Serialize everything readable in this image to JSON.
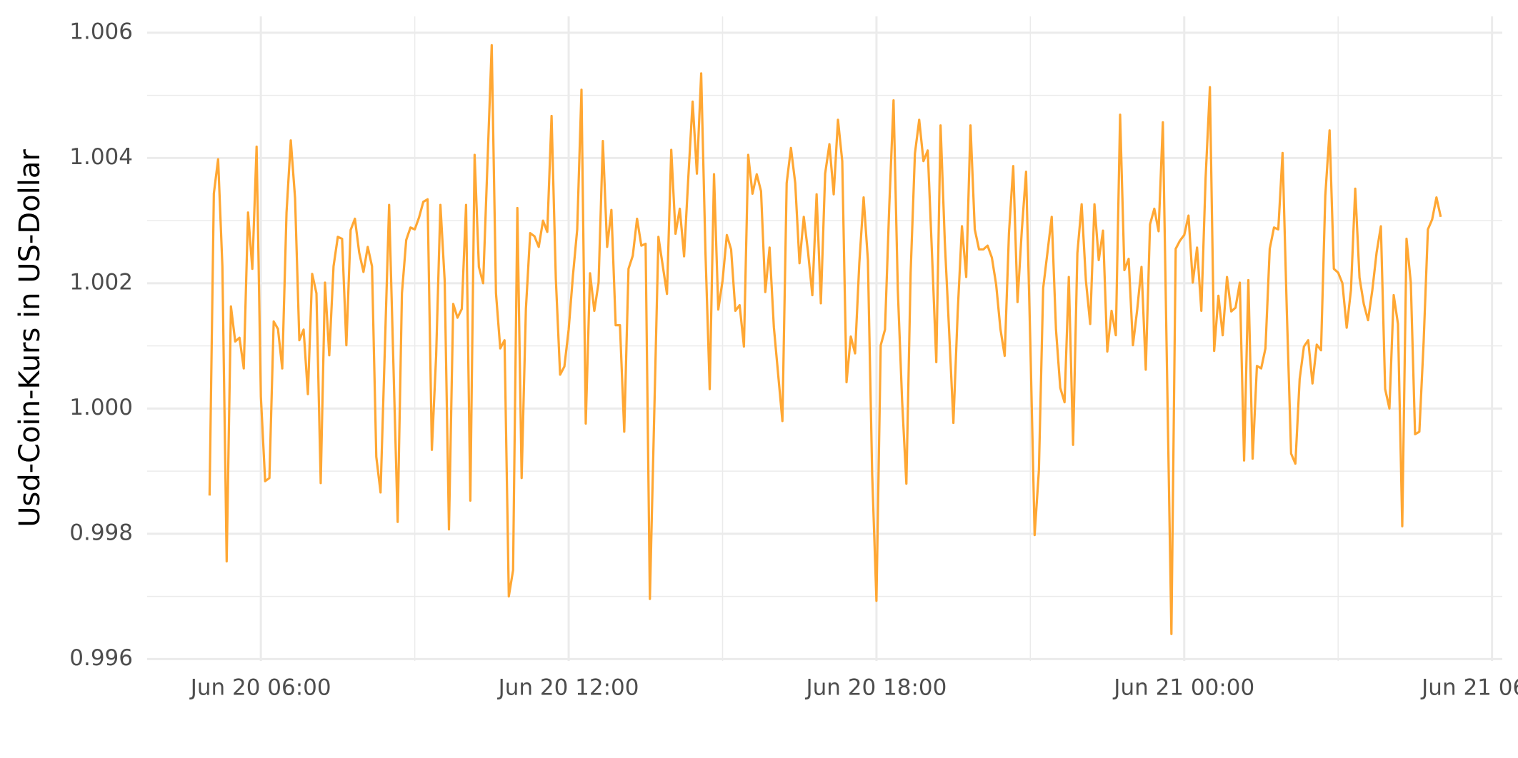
{
  "chart_data": {
    "type": "line",
    "y_label": "Usd-Coin-Kurs in US-Dollar",
    "color": "#ffa733",
    "grid": true,
    "xlim": [
      "Jun 20 03:47",
      "Jun 21 06:12"
    ],
    "xticks": [
      "Jun 20 06:00",
      "Jun 20 12:00",
      "Jun 20 18:00",
      "Jun 21 00:00",
      "Jun 21 06:00"
    ],
    "xminor": [
      "Jun 20 09:00",
      "Jun 20 15:00",
      "Jun 20 21:00",
      "Jun 21 03:00"
    ],
    "ylim": [
      0.99597,
      1.00626
    ],
    "yticks": [
      0.996,
      0.998,
      {
        "value": 1,
        "label": "1.000"
      },
      1.002,
      1.004,
      1.006
    ],
    "yminor": [
      0.997,
      0.999,
      1.001,
      1.003,
      1.005
    ],
    "x": [
      "Jun 20 05:00",
      "Jun 20 05:05",
      "Jun 20 05:10",
      "Jun 20 05:15",
      "Jun 20 05:20",
      "Jun 20 05:25",
      "Jun 20 05:30",
      "Jun 20 05:35",
      "Jun 20 05:40",
      "Jun 20 05:45",
      "Jun 20 05:50",
      "Jun 20 05:55",
      "Jun 20 06:00",
      "Jun 20 06:05",
      "Jun 20 06:10",
      "Jun 20 06:15",
      "Jun 20 06:20",
      "Jun 20 06:25",
      "Jun 20 06:30",
      "Jun 20 06:35",
      "Jun 20 06:40",
      "Jun 20 06:45",
      "Jun 20 06:50",
      "Jun 20 06:55",
      "Jun 20 07:00",
      "Jun 20 07:05",
      "Jun 20 07:10",
      "Jun 20 07:15",
      "Jun 20 07:20",
      "Jun 20 07:25",
      "Jun 20 07:30",
      "Jun 20 07:35",
      "Jun 20 07:40",
      "Jun 20 07:45",
      "Jun 20 07:50",
      "Jun 20 07:55",
      "Jun 20 08:00",
      "Jun 20 08:05",
      "Jun 20 08:10",
      "Jun 20 08:15",
      "Jun 20 08:20",
      "Jun 20 08:30",
      "Jun 20 08:40",
      "Jun 20 08:45",
      "Jun 20 08:50",
      "Jun 20 08:55",
      "Jun 20 09:00",
      "Jun 20 09:05",
      "Jun 20 09:10",
      "Jun 20 09:15",
      "Jun 20 09:20",
      "Jun 20 09:25",
      "Jun 20 09:30",
      "Jun 20 09:35",
      "Jun 20 09:40",
      "Jun 20 09:45",
      "Jun 20 09:50",
      "Jun 20 09:55",
      "Jun 20 10:00",
      "Jun 20 10:05",
      "Jun 20 10:10",
      "Jun 20 10:15",
      "Jun 20 10:20",
      "Jun 20 10:30",
      "Jun 20 10:35",
      "Jun 20 10:40",
      "Jun 20 10:45",
      "Jun 20 10:50",
      "Jun 20 10:55",
      "Jun 20 11:00",
      "Jun 20 11:05",
      "Jun 20 11:10",
      "Jun 20 11:15",
      "Jun 20 11:20",
      "Jun 20 11:25",
      "Jun 20 11:30",
      "Jun 20 11:35",
      "Jun 20 11:40",
      "Jun 20 11:45",
      "Jun 20 11:50",
      "Jun 20 11:55",
      "Jun 20 12:00",
      "Jun 20 12:05",
      "Jun 20 12:10",
      "Jun 20 12:15",
      "Jun 20 12:20",
      "Jun 20 12:25",
      "Jun 20 12:30",
      "Jun 20 12:35",
      "Jun 20 12:40",
      "Jun 20 12:45",
      "Jun 20 12:50",
      "Jun 20 12:55",
      "Jun 20 13:00",
      "Jun 20 13:05",
      "Jun 20 13:10",
      "Jun 20 13:15",
      "Jun 20 13:20",
      "Jun 20 13:25",
      "Jun 20 13:30",
      "Jun 20 13:35",
      "Jun 20 13:45",
      "Jun 20 13:55",
      "Jun 20 14:00",
      "Jun 20 14:05",
      "Jun 20 14:10",
      "Jun 20 14:15",
      "Jun 20 14:20",
      "Jun 20 14:25",
      "Jun 20 14:30",
      "Jun 20 14:35",
      "Jun 20 14:40",
      "Jun 20 14:45",
      "Jun 20 14:50",
      "Jun 20 14:55",
      "Jun 20 15:00",
      "Jun 20 15:05",
      "Jun 20 15:10",
      "Jun 20 15:15",
      "Jun 20 15:20",
      "Jun 20 15:25",
      "Jun 20 15:30",
      "Jun 20 15:35",
      "Jun 20 15:40",
      "Jun 20 15:45",
      "Jun 20 15:50",
      "Jun 20 15:55",
      "Jun 20 16:00",
      "Jun 20 16:10",
      "Jun 20 16:15",
      "Jun 20 16:20",
      "Jun 20 16:25",
      "Jun 20 16:30",
      "Jun 20 16:35",
      "Jun 20 16:40",
      "Jun 20 16:45",
      "Jun 20 16:50",
      "Jun 20 16:55",
      "Jun 20 17:00",
      "Jun 20 17:05",
      "Jun 20 17:10",
      "Jun 20 17:15",
      "Jun 20 17:20",
      "Jun 20 17:25",
      "Jun 20 17:30",
      "Jun 20 17:35",
      "Jun 20 17:40",
      "Jun 20 17:45",
      "Jun 20 17:50",
      "Jun 20 17:55",
      "Jun 20 18:00",
      "Jun 20 18:05",
      "Jun 20 18:10",
      "Jun 20 18:15",
      "Jun 20 18:20",
      "Jun 20 18:25",
      "Jun 20 18:30",
      "Jun 20 18:35",
      "Jun 20 18:40",
      "Jun 20 18:45",
      "Jun 20 18:50",
      "Jun 20 18:55",
      "Jun 20 19:00",
      "Jun 20 19:05",
      "Jun 20 19:10",
      "Jun 20 19:15",
      "Jun 20 19:20",
      "Jun 20 19:25",
      "Jun 20 19:30",
      "Jun 20 19:35",
      "Jun 20 19:40",
      "Jun 20 19:45",
      "Jun 20 19:50",
      "Jun 20 19:55",
      "Jun 20 20:00",
      "Jun 20 20:05",
      "Jun 20 20:10",
      "Jun 20 20:15",
      "Jun 20 20:20",
      "Jun 20 20:25",
      "Jun 20 20:30",
      "Jun 20 20:35",
      "Jun 20 20:40",
      "Jun 20 20:45",
      "Jun 20 20:50",
      "Jun 20 20:55",
      "Jun 20 21:00",
      "Jun 20 21:05",
      "Jun 20 21:10",
      "Jun 20 21:15",
      "Jun 20 21:20",
      "Jun 20 21:25",
      "Jun 20 21:30",
      "Jun 20 21:35",
      "Jun 20 21:40",
      "Jun 20 21:45",
      "Jun 20 21:50",
      "Jun 20 21:55",
      "Jun 20 22:00",
      "Jun 20 22:05",
      "Jun 20 22:10",
      "Jun 20 22:15",
      "Jun 20 22:20",
      "Jun 20 22:25",
      "Jun 20 22:30",
      "Jun 20 22:35",
      "Jun 20 22:40",
      "Jun 20 22:45",
      "Jun 20 22:50",
      "Jun 20 22:55",
      "Jun 20 23:00",
      "Jun 20 23:05",
      "Jun 20 23:10",
      "Jun 20 23:15",
      "Jun 20 23:20",
      "Jun 20 23:25",
      "Jun 20 23:30",
      "Jun 20 23:35",
      "Jun 20 23:45",
      "Jun 20 23:50",
      "Jun 20 23:55",
      "Jun 21 00:00",
      "Jun 21 00:05",
      "Jun 21 00:10",
      "Jun 21 00:15",
      "Jun 21 00:20",
      "Jun 21 00:25",
      "Jun 21 00:30",
      "Jun 21 00:35",
      "Jun 21 00:40",
      "Jun 21 00:45",
      "Jun 21 00:50",
      "Jun 21 00:55",
      "Jun 21 01:00",
      "Jun 21 01:05",
      "Jun 21 01:10",
      "Jun 21 01:15",
      "Jun 21 01:20",
      "Jun 21 01:25",
      "Jun 21 01:30",
      "Jun 21 01:35",
      "Jun 21 01:40",
      "Jun 21 01:45",
      "Jun 21 01:50",
      "Jun 21 01:55",
      "Jun 21 02:00",
      "Jun 21 02:05",
      "Jun 21 02:10",
      "Jun 21 02:15",
      "Jun 21 02:20",
      "Jun 21 02:25",
      "Jun 21 02:30",
      "Jun 21 02:35",
      "Jun 21 02:40",
      "Jun 21 02:45",
      "Jun 21 02:50",
      "Jun 21 02:55",
      "Jun 21 03:00",
      "Jun 21 03:05",
      "Jun 21 03:10",
      "Jun 21 03:15",
      "Jun 21 03:20",
      "Jun 21 03:25",
      "Jun 21 03:30",
      "Jun 21 03:35",
      "Jun 21 03:40",
      "Jun 21 03:45",
      "Jun 21 03:50",
      "Jun 21 03:55",
      "Jun 21 04:00",
      "Jun 21 04:05",
      "Jun 21 04:10",
      "Jun 21 04:15",
      "Jun 21 04:20",
      "Jun 21 04:25",
      "Jun 21 04:30",
      "Jun 21 04:35",
      "Jun 21 04:40",
      "Jun 21 04:45",
      "Jun 21 04:50",
      "Jun 21 04:55",
      "Jun 21 05:00"
    ],
    "values": [
      0.99861,
      1.00343,
      1.00398,
      1.00227,
      0.99756,
      1.00163,
      1.00107,
      1.00113,
      1.00064,
      1.00313,
      1.00223,
      1.00418,
      1.00019,
      0.99884,
      0.99889,
      1.00139,
      1.00127,
      1.00064,
      1.00313,
      1.00428,
      1.00336,
      1.00109,
      1.00126,
      1.00023,
      1.00215,
      1.00184,
      0.99881,
      1.00201,
      1.00085,
      1.00227,
      1.00274,
      1.00271,
      1.00101,
      1.00285,
      1.00303,
      1.00249,
      1.00218,
      1.00258,
      1.00227,
      0.99923,
      0.99866,
      1.00325,
      0.99819,
      1.00184,
      1.00269,
      1.00289,
      1.00286,
      1.00305,
      1.0033,
      1.00334,
      0.99934,
      1.00084,
      1.00325,
      1.00204,
      0.99807,
      1.00167,
      1.00145,
      1.00159,
      1.00325,
      0.99853,
      1.00405,
      1.00226,
      1.002,
      1.0058,
      1.00184,
      1.00096,
      1.00109,
      0.997,
      0.99742,
      1.0032,
      0.99889,
      1.00159,
      1.0028,
      1.00275,
      1.00258,
      1.003,
      1.00282,
      1.00467,
      1.00207,
      1.00054,
      1.00067,
      1.00126,
      1.00212,
      1.00286,
      1.00509,
      0.99976,
      1.00216,
      1.00156,
      1.00201,
      1.00427,
      1.00258,
      1.00317,
      1.00133,
      1.00133,
      0.99963,
      1.00223,
      1.00244,
      1.00303,
      1.0026,
      1.00263,
      0.99696,
      1.00274,
      1.00183,
      1.00413,
      1.00279,
      1.00319,
      1.00243,
      1.0037,
      1.0049,
      1.00375,
      1.00535,
      1.0025,
      1.00031,
      1.00374,
      1.00158,
      1.00204,
      1.00277,
      1.00254,
      1.00156,
      1.00165,
      1.00099,
      1.00405,
      1.00343,
      1.00374,
      1.00347,
      1.00186,
      1.00257,
      1.0013,
      0.9998,
      1.0036,
      1.00416,
      1.0036,
      1.00232,
      1.00306,
      1.0025,
      1.00181,
      1.00342,
      1.00168,
      1.00375,
      1.00422,
      1.00342,
      1.00461,
      1.00395,
      1.00042,
      1.00115,
      1.00088,
      1.00233,
      1.00337,
      1.00237,
      0.99895,
      0.99693,
      1.00101,
      1.00126,
      1.00323,
      1.00492,
      1.00189,
      1.00013,
      0.9988,
      1.00217,
      1.00407,
      1.00461,
      1.00395,
      1.00412,
      1.00246,
      1.00074,
      1.00452,
      1.00265,
      1.00124,
      0.99977,
      1.00153,
      1.00291,
      1.0021,
      1.00452,
      1.00286,
      1.00254,
      1.00254,
      1.0026,
      1.00241,
      1.00198,
      1.00127,
      1.00084,
      1.0028,
      1.00387,
      1.0017,
      1.00284,
      1.00378,
      1.00104,
      0.99798,
      0.99901,
      1.00192,
      1.00249,
      1.00306,
      1.00126,
      1.00033,
      1.0001,
      1.0021,
      0.99942,
      1.00248,
      1.00326,
      1.00204,
      1.00135,
      1.00326,
      1.00237,
      1.00284,
      1.00091,
      1.00156,
      1.00117,
      1.00469,
      1.00221,
      1.00239,
      1.00101,
      1.00158,
      1.00226,
      1.00062,
      1.00294,
      1.00319,
      1.00283,
      1.00457,
      0.9964,
      1.00255,
      1.00268,
      1.00277,
      1.00308,
      1.00201,
      1.00257,
      1.00156,
      1.00368,
      1.00513,
      1.00092,
      1.0018,
      1.00117,
      1.0021,
      1.00155,
      1.00161,
      1.00201,
      0.99917,
      1.00205,
      0.9992,
      1.00068,
      1.00064,
      1.00096,
      1.00255,
      1.00289,
      1.00286,
      1.00408,
      1.00155,
      0.99928,
      0.99912,
      1.00047,
      1.00099,
      1.00109,
      1.0004,
      1.00102,
      1.00093,
      1.0034,
      1.00444,
      1.00223,
      1.00217,
      1.002,
      1.00129,
      1.00189,
      1.00351,
      1.00209,
      1.00167,
      1.00141,
      1.00189,
      1.00249,
      1.00291,
      1.00031,
      1.0,
      1.00181,
      1.00135,
      0.99812,
      1.00271,
      1.00201,
      0.99959,
      0.99963,
      1.00106,
      1.00286,
      1.00302,
      1.00337,
      1.00306
    ]
  }
}
